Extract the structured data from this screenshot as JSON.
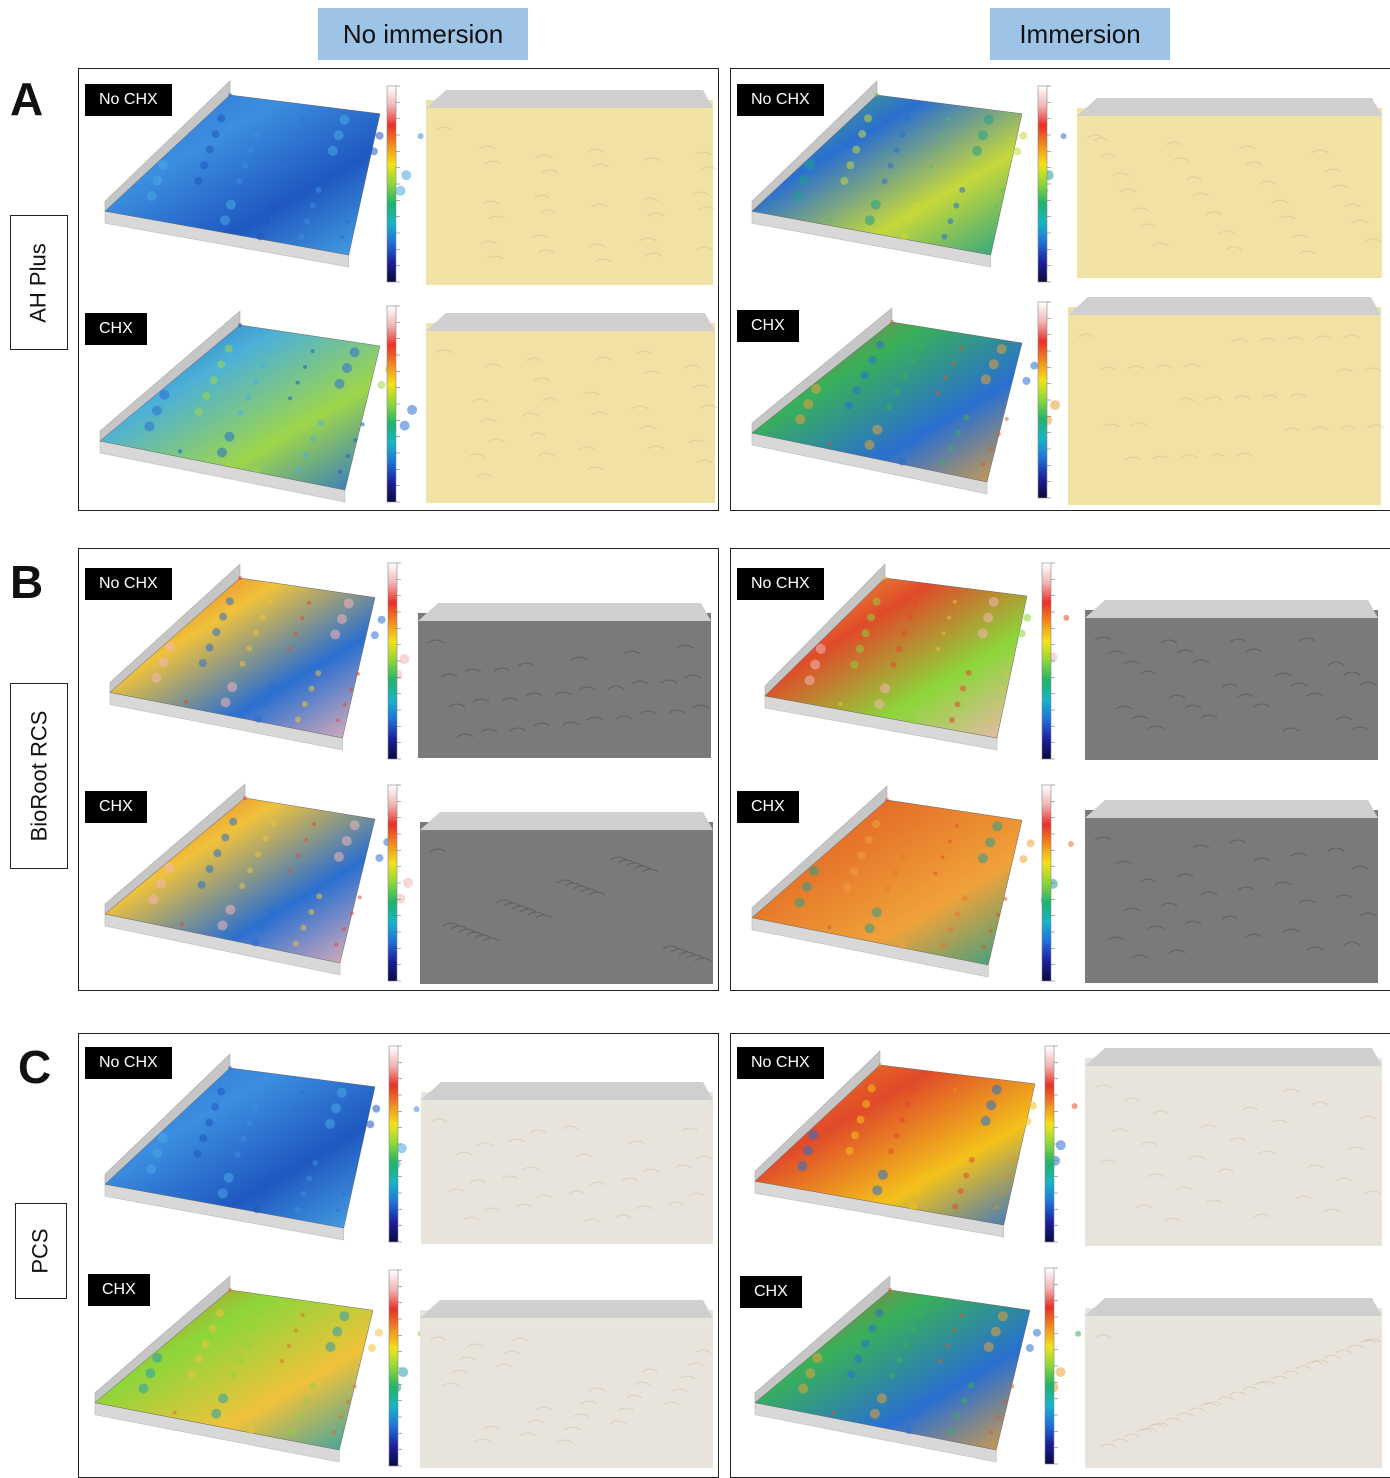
{
  "columns": {
    "left": "No immersion",
    "right": "Immersion"
  },
  "rows": [
    {
      "letter": "A",
      "label": "AH Plus",
      "render_color": "#efe2a4",
      "maps_left": {
        "top": "blue",
        "bottom": "blue-mixed"
      },
      "maps_right": {
        "top": "green-mixed",
        "bottom": "green-red"
      }
    },
    {
      "letter": "B",
      "label": "BioRoot RCS",
      "render_color": "#7a7a7a",
      "maps_left": {
        "top": "red-mixed",
        "bottom": "red-mixed"
      },
      "maps_right": {
        "top": "yellow-red",
        "bottom": "red"
      }
    },
    {
      "letter": "C",
      "label": "PCS",
      "render_color": "#e8e4dc",
      "maps_left": {
        "top": "blue",
        "bottom": "red-green"
      },
      "maps_right": {
        "top": "orange-red",
        "bottom": "green-red"
      }
    }
  ],
  "tags": {
    "no_chx": "No CHX",
    "chx": "CHX"
  },
  "colormap": [
    "#ffffff",
    "#f2b6b6",
    "#e8302a",
    "#f08a1e",
    "#f3e21a",
    "#8cd63a",
    "#1fb36b",
    "#18b4c8",
    "#1f6fd8",
    "#1b1f9a",
    "#0a0a40"
  ]
}
